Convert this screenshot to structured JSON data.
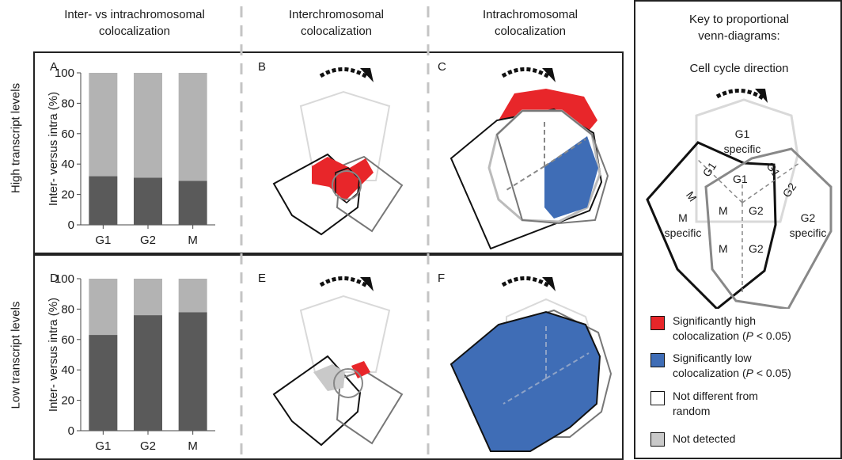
{
  "columns": {
    "col1": [
      "Inter- vs intrachromosomal",
      "colocalization"
    ],
    "col2": [
      "Interchromosomal",
      "colocalization"
    ],
    "col3": [
      "Intrachromosomal",
      "colocalization"
    ]
  },
  "rows": {
    "top": "High transcript levels",
    "bottom": "Low transcript levels"
  },
  "panels": {
    "A": "A",
    "B": "B",
    "C": "C",
    "D": "D",
    "E": "E",
    "F": "F"
  },
  "chart_data": [
    {
      "type": "bar",
      "panel": "A",
      "stacked": true,
      "categories": [
        "G1",
        "G2",
        "M"
      ],
      "series": [
        {
          "values": [
            32,
            31,
            29
          ],
          "color": "#5a5a5a"
        },
        {
          "values": [
            68,
            69,
            71
          ],
          "color": "#b3b3b3"
        }
      ],
      "ylabel": "Inter- versus intra (%)",
      "ylim": [
        0,
        100
      ],
      "yticks": [
        0,
        20,
        40,
        60,
        80,
        100
      ]
    },
    {
      "type": "bar",
      "panel": "D",
      "stacked": true,
      "categories": [
        "G1",
        "G2",
        "M"
      ],
      "series": [
        {
          "values": [
            63,
            76,
            78
          ],
          "color": "#5a5a5a"
        },
        {
          "values": [
            37,
            24,
            22
          ],
          "color": "#b3b3b3"
        }
      ],
      "ylabel": "Inter- versus intra (%)",
      "ylim": [
        0,
        100
      ],
      "yticks": [
        0,
        20,
        40,
        60,
        80,
        100
      ]
    }
  ],
  "key": {
    "title": [
      "Key to proportional",
      "venn-diagrams:"
    ],
    "cycle_direction": "Cell cycle direction",
    "regions": {
      "g1_specific": [
        "G1",
        "specific"
      ],
      "m_specific": [
        "M",
        "specific"
      ],
      "g2_specific": [
        "G2",
        "specific"
      ],
      "g1": "G1",
      "m": "M",
      "g2": "G2"
    }
  },
  "legend": [
    {
      "lines": [
        "Significantly high",
        "colocalization (",
        "P",
        " < 0.05)"
      ],
      "color": "#e8262a"
    },
    {
      "lines": [
        "Significantly low",
        "colocalization (",
        "P",
        " < 0.05)"
      ],
      "color": "#3f6db6"
    },
    {
      "lines": [
        "Not different from",
        "random"
      ],
      "color": "#ffffff"
    },
    {
      "lines": [
        "Not detected"
      ],
      "color": "#c9c9c9"
    }
  ]
}
